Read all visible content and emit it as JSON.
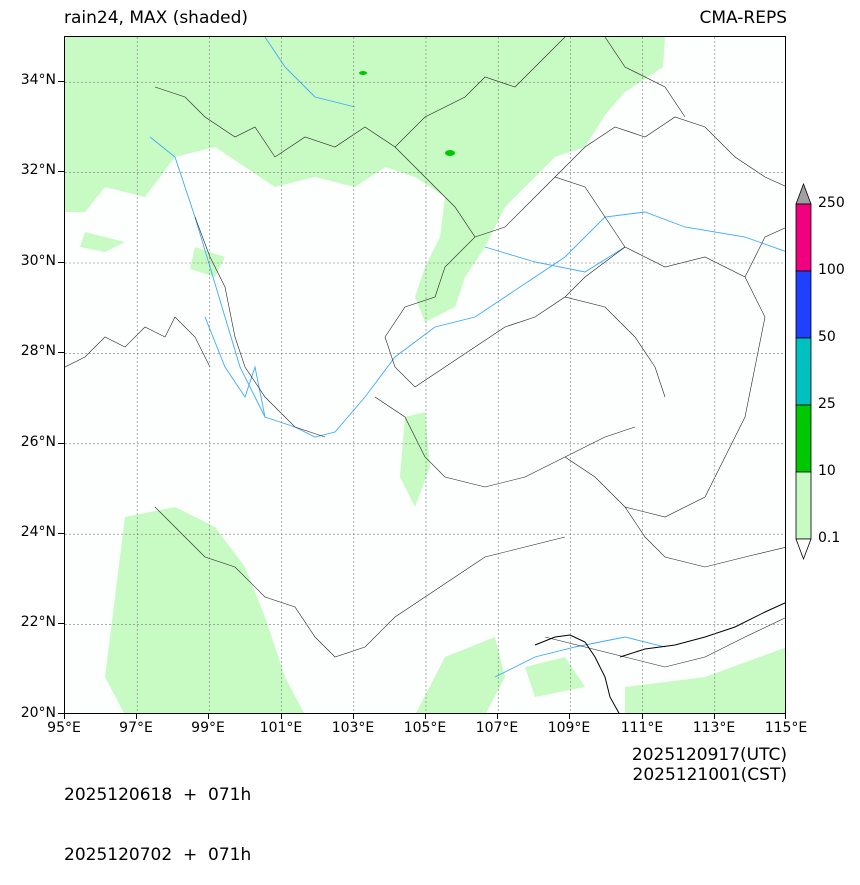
{
  "title_left": "rain24, MAX (shaded)",
  "title_right": "CMA-REPS",
  "lat_labels": [
    "34°N",
    "32°N",
    "30°N",
    "28°N",
    "26°N",
    "24°N",
    "22°N",
    "20°N"
  ],
  "lon_labels": [
    "95°E",
    "97°E",
    "99°E",
    "101°E",
    "103°E",
    "105°E",
    "107°E",
    "109°E",
    "111°E",
    "113°E",
    "115°E"
  ],
  "colorbar": {
    "levels": [
      "0.1",
      "10",
      "25",
      "50",
      "100",
      "250"
    ],
    "colors": [
      "#c8fac3",
      "#00c800",
      "#00c0c0",
      "#2040ff",
      "#f0007f"
    ],
    "extend_color": "#a0a0a0"
  },
  "footer": {
    "init_utc": "2025120618  +  071h",
    "init_cst": "2025120702  +  071h",
    "valid_utc": "2025120917(UTC)",
    "valid_cst": "2025121001(CST)"
  },
  "colors": {
    "light_rain": "#c8fac3",
    "moderate_rain": "#00c800",
    "river": "#40a8ff",
    "background": "#fcfffe"
  }
}
